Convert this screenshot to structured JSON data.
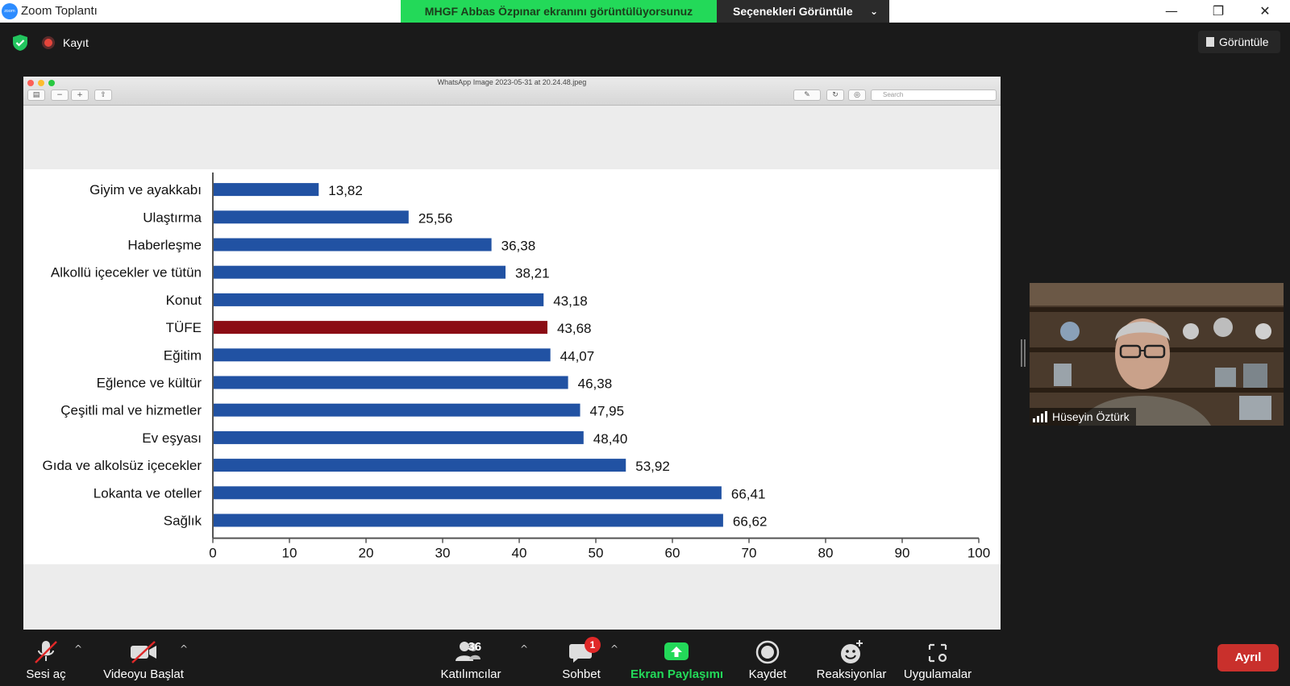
{
  "window": {
    "title": "Zoom Toplantı",
    "logo_text": "zoom",
    "minimize": "—",
    "restore": "❐",
    "close": "✕"
  },
  "share_banner": {
    "text": "MHGF Abbas Özpınar ekranını görüntülüyorsunuz",
    "options_label": "Seçenekleri Görüntüle",
    "options_chevron": "⌄"
  },
  "meeting": {
    "record_label": "Kayıt",
    "view_label": "Görüntüle"
  },
  "preview": {
    "title": "WhatsApp Image 2023-05-31 at 20.24.48.jpeg",
    "search_placeholder": "Search"
  },
  "chart_data": {
    "type": "bar",
    "orientation": "horizontal",
    "categories": [
      "Giyim ve ayakkabı",
      "Ulaştırma",
      "Haberleşme",
      "Alkollü içecekler ve tütün",
      "Konut",
      "TÜFE",
      "Eğitim",
      "Eğlence ve kültür",
      "Çeşitli mal ve hizmetler",
      "Ev eşyası",
      "Gıda ve alkolsüz içecekler",
      "Lokanta ve oteller",
      "Sağlık"
    ],
    "values": [
      13.82,
      25.56,
      36.38,
      38.21,
      43.18,
      43.68,
      44.07,
      46.38,
      47.95,
      48.4,
      53.92,
      66.41,
      66.62
    ],
    "value_labels": [
      "13,82",
      "25,56",
      "36,38",
      "38,21",
      "43,18",
      "43,68",
      "44,07",
      "46,38",
      "47,95",
      "48,40",
      "53,92",
      "66,41",
      "66,62"
    ],
    "highlight_category": "TÜFE",
    "colors": {
      "bar": "#2152a3",
      "highlight": "#8b0c14"
    },
    "xlim": [
      0,
      100
    ],
    "xticks": [
      0,
      10,
      20,
      30,
      40,
      50,
      60,
      70,
      80,
      90,
      100
    ],
    "grid": false
  },
  "participant": {
    "name": "Hüseyin Öztürk"
  },
  "toolbar": {
    "mute_label": "Sesi aç",
    "video_label": "Videoyu Başlat",
    "participants_label": "Katılımcılar",
    "participants_count": "36",
    "chat_label": "Sohbet",
    "chat_badge": "1",
    "share_label": "Ekran Paylaşımı",
    "record_label": "Kaydet",
    "reactions_label": "Reaksiyonlar",
    "apps_label": "Uygulamalar",
    "leave_label": "Ayrıl",
    "caret": "^"
  },
  "colors": {
    "share_green": "#23d959",
    "leave_red": "#c9302c"
  }
}
